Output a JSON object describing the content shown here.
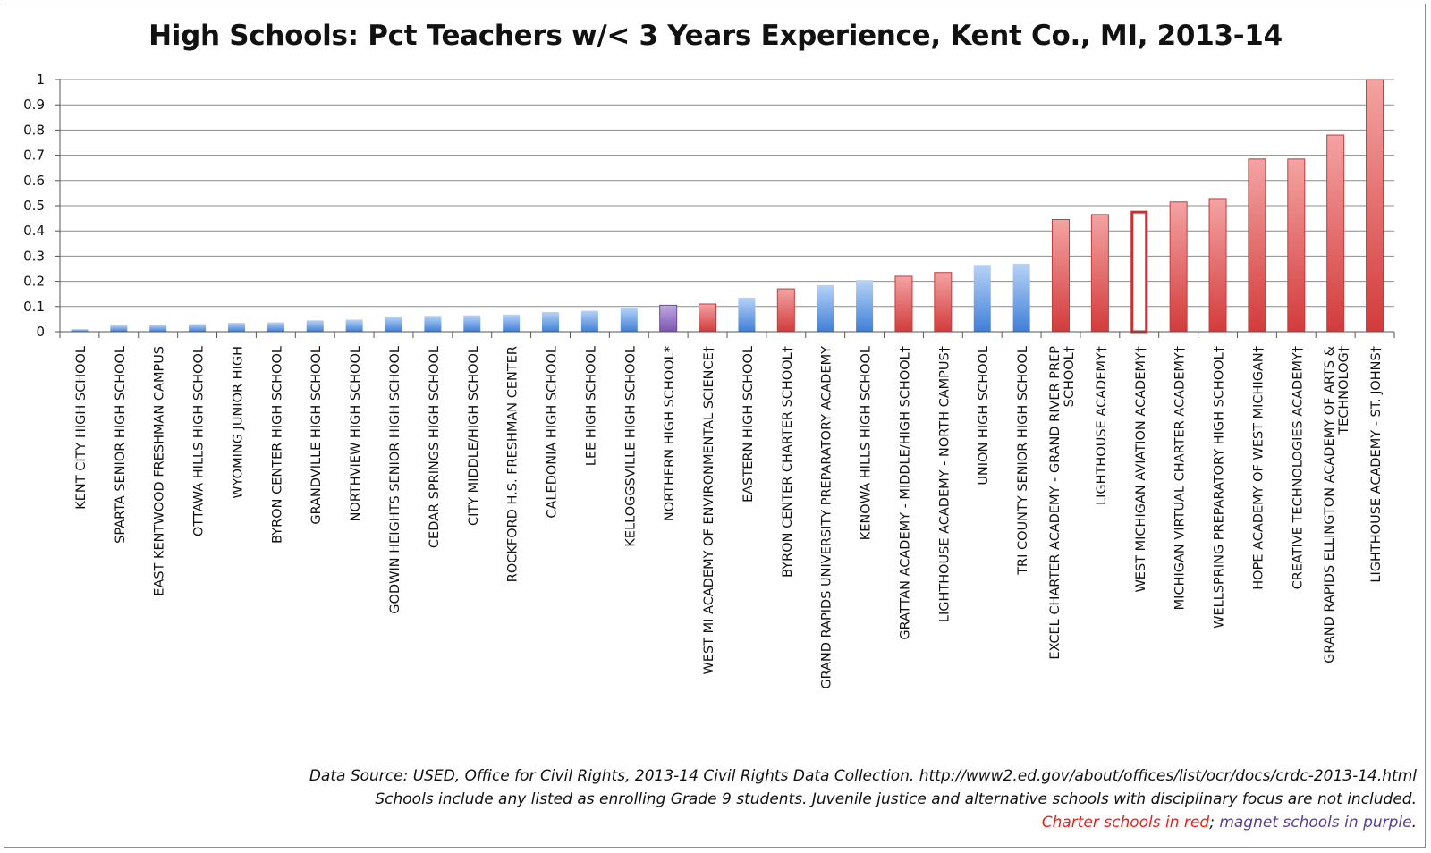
{
  "chart_data": {
    "type": "bar",
    "title": "High Schools: Pct Teachers w/< 3 Years Experience, Kent Co., MI, 2013-14",
    "xlabel": "",
    "ylabel": "",
    "ylim": [
      0,
      1
    ],
    "yticks": [
      "0",
      "0.1",
      "0.2",
      "0.3",
      "0.4",
      "0.5",
      "0.6",
      "0.7",
      "0.8",
      "0.9",
      "1"
    ],
    "grid": true,
    "categories": [
      "KENT CITY HIGH SCHOOL",
      "SPARTA SENIOR HIGH SCHOOL",
      "EAST KENTWOOD FRESHMAN CAMPUS",
      "OTTAWA HILLS HIGH SCHOOL",
      "WYOMING JUNIOR HIGH",
      "BYRON CENTER HIGH SCHOOL",
      "GRANDVILLE HIGH SCHOOL",
      "NORTHVIEW HIGH SCHOOL",
      "GODWIN HEIGHTS SENIOR HIGH SCHOOL",
      "CEDAR SPRINGS HIGH SCHOOL",
      "CITY MIDDLE/HIGH SCHOOL",
      "ROCKFORD H.S. FRESHMAN CENTER",
      "CALEDONIA HIGH SCHOOL",
      "LEE HIGH SCHOOL",
      "KELLOGGSVILLE HIGH SCHOOL",
      "NORTHERN HIGH SCHOOL*",
      "WEST MI ACADEMY OF ENVIRONMENTAL SCIENCE†",
      "EASTERN HIGH SCHOOL",
      "BYRON CENTER CHARTER SCHOOL†",
      "GRAND RAPIDS UNIVERSITY PREPARATORY ACADEMY",
      "KENOWA HILLS HIGH SCHOOL",
      "GRATTAN ACADEMY - MIDDLE/HIGH SCHOOL†",
      "LIGHTHOUSE ACADEMY - NORTH CAMPUS†",
      "UNION HIGH SCHOOL",
      "TRI COUNTY SENIOR HIGH SCHOOL",
      "EXCEL CHARTER ACADEMY - GRAND RIVER PREP SCHOOL†",
      "LIGHTHOUSE ACADEMY†",
      "WEST MICHIGAN AVIATION ACADEMY†",
      "MICHIGAN VIRTUAL CHARTER ACADEMY†",
      "WELLSPRING PREPARATORY HIGH SCHOOL†",
      "HOPE ACADEMY OF WEST MICHIGAN†",
      "CREATIVE TECHNOLOGIES ACADEMY†",
      "GRAND RAPIDS ELLINGTON ACADEMY OF ARTS & TECHNOLOG†",
      "LIGHTHOUSE ACADEMY - ST. JOHNS†"
    ],
    "label_lines": [
      [
        "KENT CITY HIGH SCHOOL"
      ],
      [
        "SPARTA SENIOR HIGH SCHOOL"
      ],
      [
        "EAST KENTWOOD FRESHMAN CAMPUS"
      ],
      [
        "OTTAWA HILLS HIGH SCHOOL"
      ],
      [
        "WYOMING JUNIOR HIGH"
      ],
      [
        "BYRON CENTER HIGH SCHOOL"
      ],
      [
        "GRANDVILLE HIGH SCHOOL"
      ],
      [
        "NORTHVIEW HIGH SCHOOL"
      ],
      [
        "GODWIN HEIGHTS SENIOR HIGH SCHOOL"
      ],
      [
        "CEDAR SPRINGS HIGH SCHOOL"
      ],
      [
        "CITY MIDDLE/HIGH SCHOOL"
      ],
      [
        "ROCKFORD H.S. FRESHMAN CENTER"
      ],
      [
        "CALEDONIA HIGH SCHOOL"
      ],
      [
        "LEE HIGH SCHOOL"
      ],
      [
        "KELLOGGSVILLE HIGH SCHOOL"
      ],
      [
        "NORTHERN HIGH SCHOOL*"
      ],
      [
        "WEST MI ACADEMY OF ENVIRONMENTAL SCIENCE†"
      ],
      [
        "EASTERN HIGH SCHOOL"
      ],
      [
        "BYRON CENTER CHARTER SCHOOL†"
      ],
      [
        "GRAND RAPIDS UNIVERSITY PREPARATORY ACADEMY"
      ],
      [
        "KENOWA HILLS HIGH SCHOOL"
      ],
      [
        "GRATTAN ACADEMY - MIDDLE/HIGH SCHOOL†"
      ],
      [
        "LIGHTHOUSE ACADEMY - NORTH CAMPUS†"
      ],
      [
        "UNION HIGH SCHOOL"
      ],
      [
        "TRI COUNTY SENIOR HIGH SCHOOL"
      ],
      [
        "EXCEL CHARTER ACADEMY - GRAND RIVER PREP",
        "SCHOOL†"
      ],
      [
        "LIGHTHOUSE ACADEMY†"
      ],
      [
        "WEST MICHIGAN AVIATION ACADEMY†"
      ],
      [
        "MICHIGAN VIRTUAL CHARTER ACADEMY†"
      ],
      [
        "WELLSPRING PREPARATORY HIGH SCHOOL†"
      ],
      [
        "HOPE ACADEMY OF WEST MICHIGAN†"
      ],
      [
        "CREATIVE TECHNOLOGIES ACADEMY†"
      ],
      [
        "GRAND RAPIDS ELLINGTON ACADEMY OF ARTS &",
        "TECHNOLOG†"
      ],
      [
        "LIGHTHOUSE ACADEMY - ST. JOHNS†"
      ]
    ],
    "values": [
      0.01,
      0.025,
      0.027,
      0.03,
      0.035,
      0.037,
      0.045,
      0.048,
      0.06,
      0.063,
      0.065,
      0.068,
      0.078,
      0.083,
      0.095,
      0.105,
      0.11,
      0.135,
      0.17,
      0.185,
      0.205,
      0.22,
      0.235,
      0.265,
      0.27,
      0.445,
      0.465,
      0.48,
      0.515,
      0.525,
      0.685,
      0.685,
      0.78,
      1.0
    ],
    "types": [
      "regular",
      "regular",
      "regular",
      "regular",
      "regular",
      "regular",
      "regular",
      "regular",
      "regular",
      "regular",
      "regular",
      "regular",
      "regular",
      "regular",
      "regular",
      "magnet",
      "charter",
      "regular",
      "charter",
      "regular",
      "regular",
      "charter",
      "charter",
      "regular",
      "regular",
      "charter",
      "charter",
      "charter-outline",
      "charter",
      "charter",
      "charter",
      "charter",
      "charter",
      "charter"
    ],
    "colors": {
      "regular": "#4f8fe0",
      "charter": "#dc4a4a",
      "magnet": "#8a66bb",
      "axis": "#555555",
      "grid": "#8c8c8c"
    }
  },
  "footer": {
    "source": "Data Source: USED, Office for Civil Rights, 2013-14 Civil Rights Data Collection. http://www2.ed.gov/about/offices/list/ocr/docs/crdc-2013-14.html",
    "note": "Schools include any listed as enrolling Grade 9 students. Juvenile justice and alternative schools with disciplinary focus are not included.",
    "legend_charter": "Charter schools in red",
    "legend_separator": "; ",
    "legend_magnet": "magnet schools in purple",
    "legend_end": "."
  }
}
